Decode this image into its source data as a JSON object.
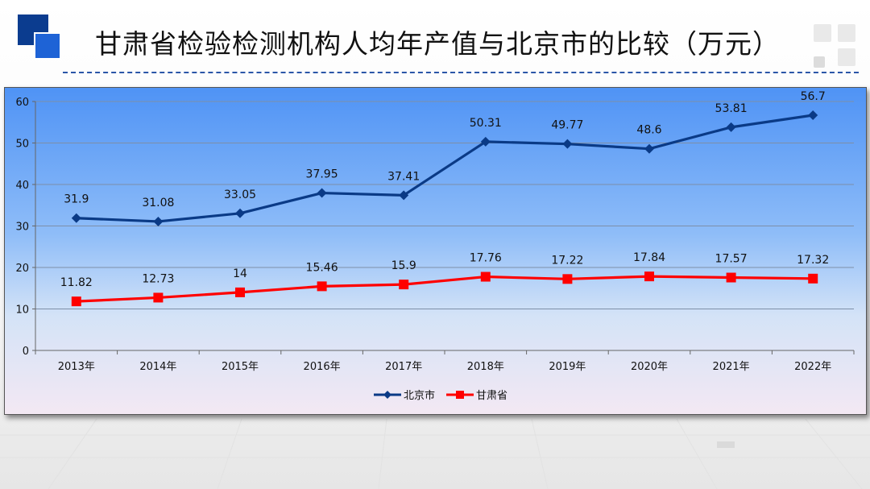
{
  "page": {
    "title": "甘肃省检验检测机构人均年产值与北京市的比较（万元）"
  },
  "colors": {
    "beijing": "#0a3a86",
    "gansu": "#ff0000",
    "frame_top": "#4f93f5",
    "frame_bottom": "#f3e8f3"
  },
  "chart_data": {
    "type": "line",
    "title": "",
    "xlabel": "",
    "ylabel": "",
    "categories": [
      "2013年",
      "2014年",
      "2015年",
      "2016年",
      "2017年",
      "2018年",
      "2019年",
      "2020年",
      "2021年",
      "2022年"
    ],
    "ylim": [
      0,
      60
    ],
    "yticks": [
      0,
      10,
      20,
      30,
      40,
      50,
      60
    ],
    "grid": true,
    "legend_position": "bottom",
    "series": [
      {
        "name": "北京市",
        "marker": "diamond",
        "color": "#0a3a86",
        "values": [
          31.9,
          31.08,
          33.05,
          37.95,
          37.41,
          50.31,
          49.77,
          48.6,
          53.81,
          56.7
        ],
        "labels": [
          "31.9",
          "31.08",
          "33.05",
          "37.95",
          "37.41",
          "50.31",
          "49.77",
          "48.6",
          "53.81",
          "56.7"
        ]
      },
      {
        "name": "甘肃省",
        "marker": "square",
        "color": "#ff0000",
        "values": [
          11.82,
          12.73,
          14,
          15.46,
          15.9,
          17.76,
          17.22,
          17.84,
          17.57,
          17.32
        ],
        "labels": [
          "11.82",
          "12.73",
          "14",
          "15.46",
          "15.9",
          "17.76",
          "17.22",
          "17.84",
          "17.57",
          "17.32"
        ]
      }
    ]
  }
}
